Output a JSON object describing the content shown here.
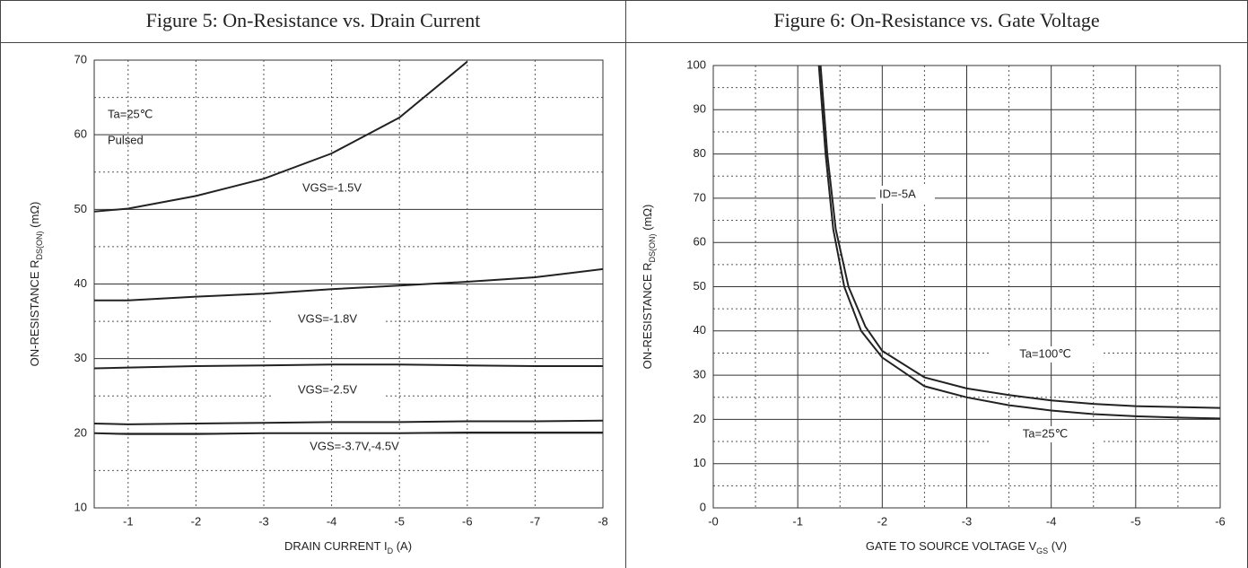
{
  "chart_data": [
    {
      "type": "line",
      "title": "Figure 5: On-Resistance vs. Drain Current",
      "x": [
        -0.5,
        -1,
        -2,
        -3,
        -4,
        -5,
        -6,
        -7,
        -8
      ],
      "series": [
        {
          "name": "VGS=-1.5V",
          "color": "#222222",
          "values": [
            49.7,
            50.1,
            51.8,
            54.1,
            57.5,
            62.3,
            69.8,
            null,
            null
          ]
        },
        {
          "name": "VGS=-1.8V",
          "color": "#222222",
          "values": [
            37.8,
            37.8,
            38.3,
            38.7,
            39.3,
            39.8,
            40.3,
            40.9,
            42
          ]
        },
        {
          "name": "VGS=-2.5V",
          "color": "#222222",
          "values": [
            28.7,
            28.8,
            29.0,
            29.1,
            29.2,
            29.2,
            29.1,
            29.0,
            29.0
          ]
        },
        {
          "name": "VGS=-3.7V,-4.5V",
          "color": "#222222",
          "values": [
            21.3,
            21.2,
            21.3,
            21.4,
            21.5,
            21.5,
            21.6,
            21.6,
            21.7
          ]
        },
        {
          "color": "#222222",
          "values": [
            20.0,
            19.9,
            19.9,
            20.0,
            20.0,
            20.0,
            20.1,
            20.1,
            20.1
          ]
        }
      ],
      "annotations": [
        "Ta=25℃",
        "Pulsed"
      ],
      "xlabel": [
        "DRAIN CURRENT  I",
        "D",
        "  (A)"
      ],
      "ylabel": [
        "ON-RESISTANCE  R",
        "DS(ON)",
        "  (mΩ)"
      ],
      "xlim": [
        -0.5,
        -8
      ],
      "xticks": [
        -1,
        -2,
        -3,
        -4,
        -5,
        -6,
        -7,
        -8
      ],
      "ylim": [
        10,
        70
      ],
      "yticks": [
        10,
        20,
        30,
        40,
        50,
        60,
        70
      ],
      "minor_yticks": [
        15,
        25,
        35,
        45,
        55,
        65
      ],
      "grid": true
    },
    {
      "type": "line",
      "title": "Figure 6: On-Resistance vs. Gate Voltage",
      "series": [
        {
          "name": "Ta=100℃",
          "color": "#222222",
          "x": [
            -1.27,
            -1.35,
            -1.45,
            -1.6,
            -1.8,
            -2,
            -2.5,
            -3,
            -3.5,
            -4,
            -4.5,
            -5,
            -5.5,
            -6
          ],
          "values": [
            100,
            80,
            63,
            50,
            41,
            35.5,
            29.5,
            27,
            25.5,
            24.3,
            23.5,
            23,
            22.8,
            22.6
          ]
        },
        {
          "name": "Ta=25℃",
          "color": "#222222",
          "x": [
            -1.25,
            -1.33,
            -1.42,
            -1.55,
            -1.75,
            -2,
            -2.5,
            -3,
            -3.5,
            -4,
            -4.5,
            -5,
            -5.5,
            -6
          ],
          "values": [
            100,
            80,
            63,
            50,
            40,
            34,
            27.5,
            25,
            23.2,
            22,
            21.2,
            20.7,
            20.4,
            20.2
          ]
        }
      ],
      "annotations": [
        "ID=-5A"
      ],
      "xlabel": [
        "GATE TO SOURCE VOLTAGE  V",
        "GS",
        "  (V)"
      ],
      "ylabel": [
        "ON-RESISTANCE  R",
        "DS(ON)",
        "  (mΩ)"
      ],
      "xlim": [
        0,
        -6
      ],
      "xticks": [
        {
          "value": 0,
          "label": "-0"
        },
        -1,
        -2,
        -3,
        -4,
        -5,
        -6
      ],
      "minor_xticks": [
        -0.5,
        -1.5,
        -2.5,
        -3.5,
        -4.5,
        -5.5
      ],
      "ylim": [
        0,
        100
      ],
      "yticks": [
        0,
        10,
        20,
        30,
        40,
        50,
        60,
        70,
        80,
        90,
        100
      ],
      "minor_yticks": [
        5,
        15,
        25,
        35,
        45,
        55,
        65,
        75,
        85,
        95
      ],
      "grid": true
    }
  ]
}
